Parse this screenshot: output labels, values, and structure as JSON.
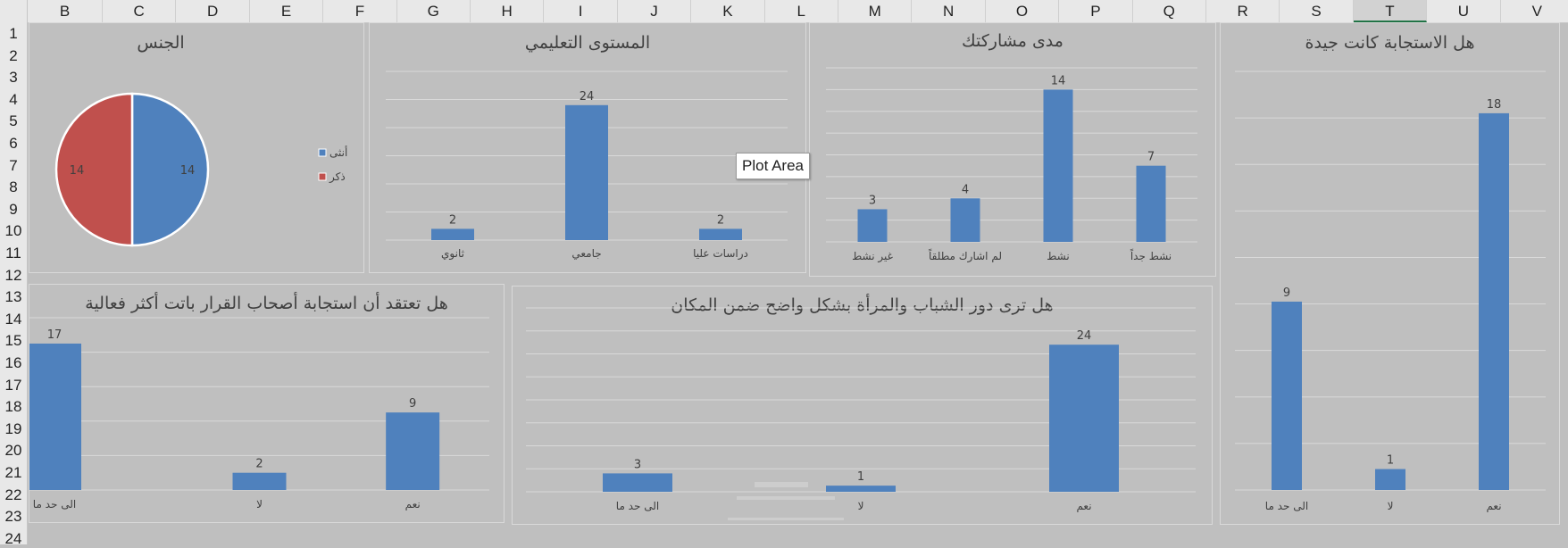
{
  "spreadsheet": {
    "columns": [
      "B",
      "C",
      "D",
      "E",
      "F",
      "G",
      "H",
      "I",
      "J",
      "K",
      "L",
      "M",
      "N",
      "O",
      "P",
      "Q",
      "R",
      "S",
      "T",
      "U",
      "V"
    ],
    "selected_column": "T",
    "rows": [
      "1",
      "2",
      "3",
      "4",
      "5",
      "6",
      "7",
      "8",
      "9",
      "10",
      "11",
      "12",
      "13",
      "14",
      "15",
      "16",
      "17",
      "18",
      "19",
      "20",
      "21",
      "22",
      "23",
      "24"
    ]
  },
  "colors": {
    "bar": "#4f81bd",
    "female": "#4f81bd",
    "male": "#c0504d",
    "chart_bg": "#bfbfbf",
    "gridline": "#d9d9d9",
    "text": "#404040"
  },
  "tooltip": {
    "text": "Plot Area"
  },
  "charts": {
    "gender": {
      "title": "الجنس"
    },
    "education": {
      "title": "المستوى التعليمي"
    },
    "participation": {
      "title": "مدى مشاركتك"
    },
    "response_good": {
      "title": "هل الاستجابة كانت جيدة"
    },
    "decision_makers": {
      "title": "هل تعتقد أن استجابة أصحاب القرار باتت أكثر فعالية"
    },
    "youth_women": {
      "title": "هل ترى دور الشباب والمرأة بشكل واضح ضمن المكان"
    }
  },
  "chart_data": [
    {
      "id": "gender",
      "type": "pie",
      "title": "الجنس",
      "categories": [
        "أنثى",
        "ذكر"
      ],
      "values": [
        14,
        14
      ],
      "colors": [
        "#4f81bd",
        "#c0504d"
      ],
      "legend": "right"
    },
    {
      "id": "education",
      "type": "bar",
      "title": "المستوى التعليمي",
      "categories": [
        "ثانوي",
        "جامعي",
        "دراسات عليا"
      ],
      "values": [
        2,
        24,
        2
      ],
      "ylim": [
        0,
        30
      ]
    },
    {
      "id": "participation",
      "type": "bar",
      "title": "مدى مشاركتك",
      "categories": [
        "غير نشط",
        "لم اشارك مطلقاً",
        "نشط",
        "نشط جداً"
      ],
      "values": [
        3,
        4,
        14,
        7
      ],
      "ylim": [
        0,
        16
      ]
    },
    {
      "id": "response_good",
      "type": "bar",
      "title": "هل الاستجابة كانت جيدة",
      "categories": [
        "الى حد ما",
        "لا",
        "نعم"
      ],
      "values": [
        9,
        1,
        18
      ],
      "ylim": [
        0,
        20
      ]
    },
    {
      "id": "decision_makers",
      "type": "bar",
      "title": "هل تعتقد أن استجابة أصحاب القرار باتت أكثر فعالية",
      "categories": [
        "الى حد ما",
        "لا",
        "نعم"
      ],
      "values": [
        17,
        2,
        9
      ],
      "ylim": [
        0,
        20
      ]
    },
    {
      "id": "youth_women",
      "type": "bar",
      "title": "هل ترى دور الشباب والمرأة بشكل واضح ضمن المكان",
      "categories": [
        "الى حد ما",
        "لا",
        "نعم"
      ],
      "values": [
        3,
        1,
        24
      ],
      "ylim": [
        0,
        30
      ]
    }
  ]
}
